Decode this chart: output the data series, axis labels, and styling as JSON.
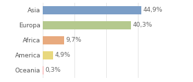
{
  "categories": [
    "Asia",
    "Europa",
    "Africa",
    "America",
    "Oceania"
  ],
  "values": [
    44.9,
    40.3,
    9.7,
    4.9,
    0.3
  ],
  "labels": [
    "44,9%",
    "40,3%",
    "9,7%",
    "4,9%",
    "0,3%"
  ],
  "bar_colors": [
    "#7b9ec7",
    "#b5c98e",
    "#e8aa7e",
    "#e8d87e",
    "#f5a0a0"
  ],
  "background_color": "#ffffff",
  "xlim": [
    0,
    58
  ],
  "label_fontsize": 6.5,
  "tick_fontsize": 6.5,
  "bar_height": 0.55
}
